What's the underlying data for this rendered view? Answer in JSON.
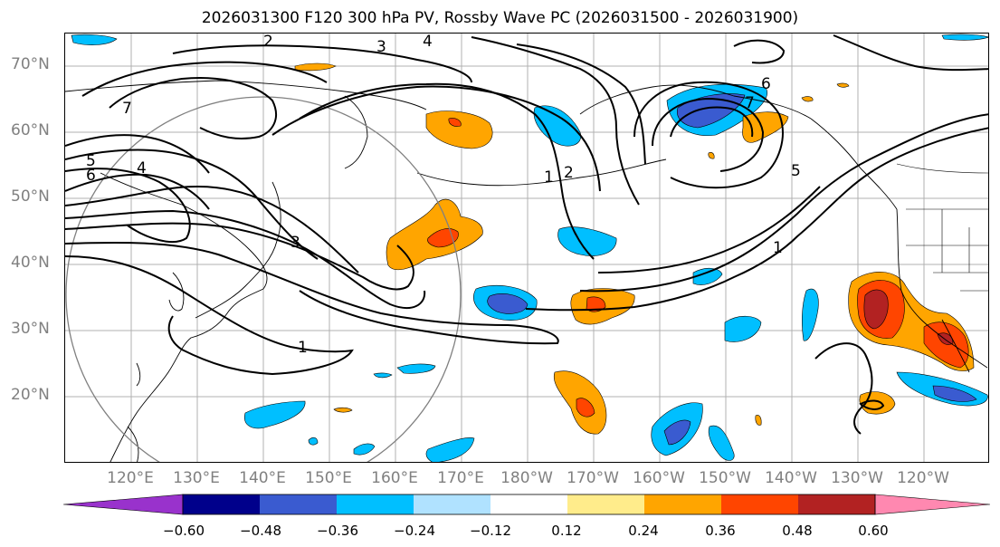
{
  "title": "2026031300 F120 300 hPa PV, Rossby Wave PC (2026031500 - 2026031900)",
  "lat_labels": [
    "70°N",
    "60°N",
    "50°N",
    "40°N",
    "30°N",
    "20°N"
  ],
  "lon_labels": [
    "120°E",
    "130°E",
    "140°E",
    "150°E",
    "160°E",
    "170°E",
    "180°W",
    "170°W",
    "160°W",
    "150°W",
    "140°W",
    "130°W",
    "120°W"
  ],
  "contour_labels": [
    "1",
    "2",
    "3",
    "3",
    "4",
    "4",
    "5",
    "5",
    "6",
    "6",
    "7",
    "7",
    "1",
    "1",
    "2"
  ],
  "colorbar": {
    "ticks": [
      "−0.60",
      "−0.48",
      "−0.36",
      "−0.24",
      "−0.12",
      "0.12",
      "0.24",
      "0.36",
      "0.48",
      "0.60"
    ],
    "colors": [
      "#9932cc",
      "#00008b",
      "#3a5bd0",
      "#00bfff",
      "#b0e2ff",
      "#ffffff",
      "#ffec8b",
      "#ffa500",
      "#ff4500",
      "#b22222",
      "#ff88b0"
    ]
  },
  "colors": {
    "neg_strong": "#3a5bd0",
    "neg_mid": "#00bfff",
    "neg_weak": "#b0e2ff",
    "pos_weak": "#ffec8b",
    "pos_mid": "#ffa500",
    "pos_strong": "#ff4500",
    "pos_max": "#b22222"
  }
}
